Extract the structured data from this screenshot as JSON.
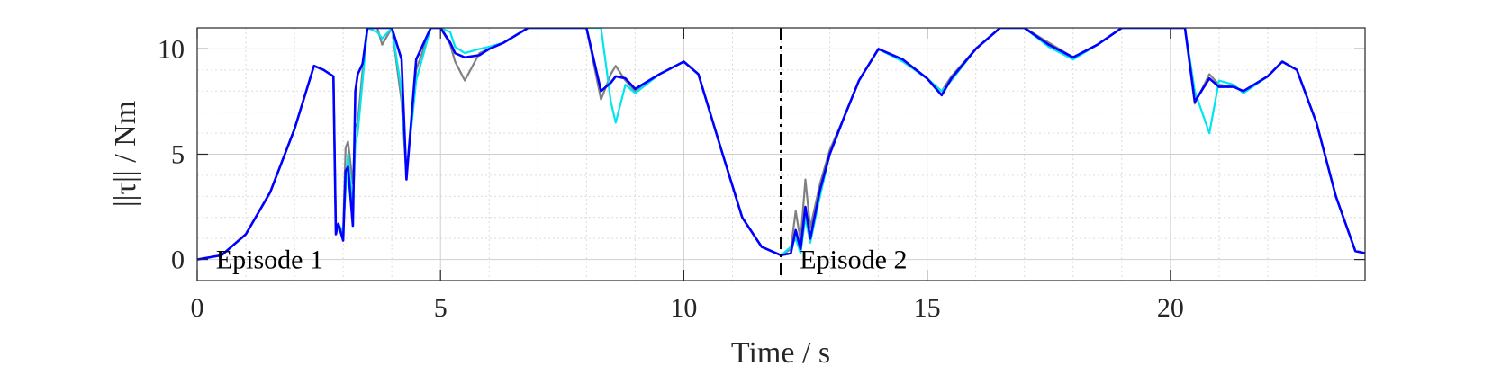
{
  "chart_data": {
    "type": "line",
    "title": "",
    "xlabel": "Time / s",
    "ylabel": "||τ|| / Nm",
    "xlim": [
      0,
      24
    ],
    "ylim": [
      -1,
      11
    ],
    "xticks": [
      0,
      5,
      10,
      15,
      20
    ],
    "xtick_labels": [
      "0",
      "5",
      "10",
      "15",
      "20"
    ],
    "yticks": [
      0,
      5,
      10
    ],
    "ytick_labels": [
      "0",
      "5",
      "10"
    ],
    "grid": "major and minor",
    "legend": "none",
    "episode_divider_x": 12,
    "annotations": [
      {
        "text": "Episode 1",
        "x": 0.2,
        "y": 0
      },
      {
        "text": "Episode 2",
        "x": 12.2,
        "y": 0
      }
    ],
    "series": [
      {
        "color": "#808080",
        "x": [
          0,
          0.5,
          1.0,
          1.5,
          2.0,
          2.4,
          2.6,
          2.8,
          2.85,
          2.9,
          3.0,
          3.05,
          3.1,
          3.2,
          3.25,
          3.3,
          3.4,
          3.5,
          3.7,
          3.8,
          4.0,
          4.2,
          4.3,
          4.5,
          4.8,
          5.0,
          5.2,
          5.3,
          5.5,
          5.8,
          6.0,
          6.3,
          6.8,
          7.0,
          7.8,
          8.0,
          8.3,
          8.5,
          8.6,
          8.8,
          9.0,
          9.5,
          10.0,
          10.3,
          10.8,
          11.2,
          11.6,
          12.0,
          12.2,
          12.3,
          12.4,
          12.5,
          12.6,
          12.8,
          13.0,
          13.3,
          13.6,
          14.0,
          14.5,
          15.0,
          15.3,
          15.5,
          16.0,
          16.5,
          17.0,
          17.5,
          18.0,
          18.5,
          19.0,
          19.5,
          20.0,
          20.3,
          20.5,
          20.8,
          21.0,
          21.3,
          21.5,
          22.0,
          22.3,
          22.6,
          23.0,
          23.4,
          23.8,
          24.0
        ],
        "values": [
          0,
          0.2,
          1.2,
          3.2,
          6.2,
          9.2,
          9.0,
          8.7,
          1.5,
          1.7,
          1.3,
          5.3,
          5.6,
          3.6,
          6.3,
          6.5,
          9.0,
          11.0,
          11.0,
          10.2,
          11.0,
          7.5,
          4.0,
          9.0,
          11.0,
          11.0,
          10.2,
          9.4,
          8.5,
          9.8,
          10.0,
          10.3,
          11.0,
          11.0,
          11.0,
          11.0,
          7.6,
          8.8,
          9.2,
          8.5,
          8.0,
          8.8,
          9.4,
          8.8,
          5.0,
          2.0,
          0.6,
          0.2,
          0.5,
          2.3,
          0.9,
          3.8,
          1.5,
          3.6,
          5.2,
          6.8,
          8.5,
          10.0,
          9.5,
          8.6,
          8.0,
          8.7,
          10.0,
          11.0,
          11.0,
          10.3,
          9.6,
          10.2,
          11.0,
          11.0,
          11.0,
          11.0,
          7.4,
          8.8,
          8.3,
          8.2,
          8.0,
          8.7,
          9.4,
          9.0,
          6.5,
          3.0,
          0.4,
          0.3
        ]
      },
      {
        "color": "#00e5ee",
        "x": [
          0,
          0.5,
          1.0,
          1.5,
          2.0,
          2.4,
          2.6,
          2.8,
          2.85,
          2.9,
          3.0,
          3.05,
          3.1,
          3.2,
          3.25,
          3.3,
          3.4,
          3.5,
          3.7,
          3.8,
          4.0,
          4.2,
          4.3,
          4.5,
          4.8,
          5.0,
          5.2,
          5.3,
          5.5,
          5.8,
          6.0,
          6.3,
          6.8,
          7.0,
          7.8,
          8.0,
          8.3,
          8.5,
          8.6,
          8.8,
          9.0,
          9.5,
          10.0,
          10.3,
          10.8,
          11.2,
          11.6,
          12.0,
          12.2,
          12.3,
          12.4,
          12.5,
          12.6,
          12.8,
          13.0,
          13.3,
          13.6,
          14.0,
          14.5,
          15.0,
          15.3,
          15.5,
          16.0,
          16.5,
          17.0,
          17.5,
          18.0,
          18.5,
          19.0,
          19.5,
          20.0,
          20.3,
          20.5,
          20.8,
          21.0,
          21.3,
          21.5,
          22.0,
          22.3,
          22.6,
          23.0,
          23.4,
          23.8,
          24.0
        ],
        "values": [
          0,
          0.2,
          1.2,
          3.2,
          6.2,
          9.2,
          9.0,
          8.7,
          1.5,
          1.7,
          1.3,
          3.3,
          5.0,
          2.5,
          5.5,
          6.0,
          8.5,
          11.0,
          10.8,
          10.5,
          11.0,
          8.0,
          4.0,
          8.5,
          11.0,
          11.0,
          10.8,
          10.1,
          9.8,
          10.0,
          10.1,
          10.3,
          11.0,
          11.0,
          11.0,
          11.0,
          11.0,
          7.5,
          6.5,
          8.3,
          7.9,
          8.8,
          9.4,
          8.8,
          5.0,
          2.0,
          0.6,
          0.2,
          0.6,
          1.0,
          0.3,
          2.0,
          0.8,
          3.0,
          5.0,
          6.8,
          8.5,
          10.0,
          9.4,
          8.6,
          8.0,
          8.5,
          10.0,
          11.0,
          11.0,
          10.1,
          9.5,
          10.2,
          11.0,
          11.0,
          11.0,
          11.0,
          8.0,
          6.0,
          8.5,
          8.3,
          7.9,
          8.7,
          9.4,
          9.0,
          6.5,
          3.0,
          0.4,
          0.3
        ]
      },
      {
        "color": "#0000ff",
        "x": [
          0,
          0.5,
          1.0,
          1.5,
          2.0,
          2.4,
          2.6,
          2.8,
          2.85,
          2.9,
          3.0,
          3.05,
          3.1,
          3.2,
          3.25,
          3.3,
          3.4,
          3.5,
          3.7,
          3.8,
          4.0,
          4.2,
          4.3,
          4.5,
          4.8,
          5.0,
          5.2,
          5.3,
          5.5,
          5.8,
          6.0,
          6.3,
          6.8,
          7.0,
          7.8,
          8.0,
          8.3,
          8.5,
          8.6,
          8.8,
          9.0,
          9.5,
          10.0,
          10.3,
          10.8,
          11.2,
          11.6,
          12.0,
          12.2,
          12.3,
          12.4,
          12.5,
          12.6,
          12.8,
          13.0,
          13.3,
          13.6,
          14.0,
          14.5,
          15.0,
          15.3,
          15.5,
          16.0,
          16.5,
          17.0,
          17.5,
          18.0,
          18.5,
          19.0,
          19.5,
          20.0,
          20.3,
          20.5,
          20.8,
          21.0,
          21.3,
          21.5,
          22.0,
          22.3,
          22.6,
          23.0,
          23.4,
          23.8,
          24.0
        ],
        "values": [
          0,
          0.2,
          1.2,
          3.2,
          6.2,
          9.2,
          9.0,
          8.7,
          1.2,
          1.7,
          0.9,
          4.2,
          4.4,
          1.6,
          8.0,
          8.8,
          9.3,
          11.0,
          11.0,
          11.0,
          11.0,
          9.5,
          3.8,
          9.5,
          11.0,
          11.0,
          10.3,
          9.8,
          9.6,
          9.7,
          10.0,
          10.3,
          11.0,
          11.0,
          11.0,
          11.0,
          8.0,
          8.4,
          8.7,
          8.6,
          8.1,
          8.8,
          9.4,
          8.8,
          5.0,
          2.0,
          0.6,
          0.2,
          0.3,
          1.4,
          0.5,
          2.5,
          1.0,
          3.3,
          5.0,
          6.8,
          8.5,
          10.0,
          9.5,
          8.6,
          7.8,
          8.6,
          10.0,
          11.0,
          11.0,
          10.2,
          9.6,
          10.2,
          11.0,
          11.0,
          11.0,
          11.0,
          7.5,
          8.6,
          8.2,
          8.2,
          8.0,
          8.7,
          9.4,
          9.0,
          6.5,
          3.0,
          0.4,
          0.3
        ]
      }
    ]
  }
}
